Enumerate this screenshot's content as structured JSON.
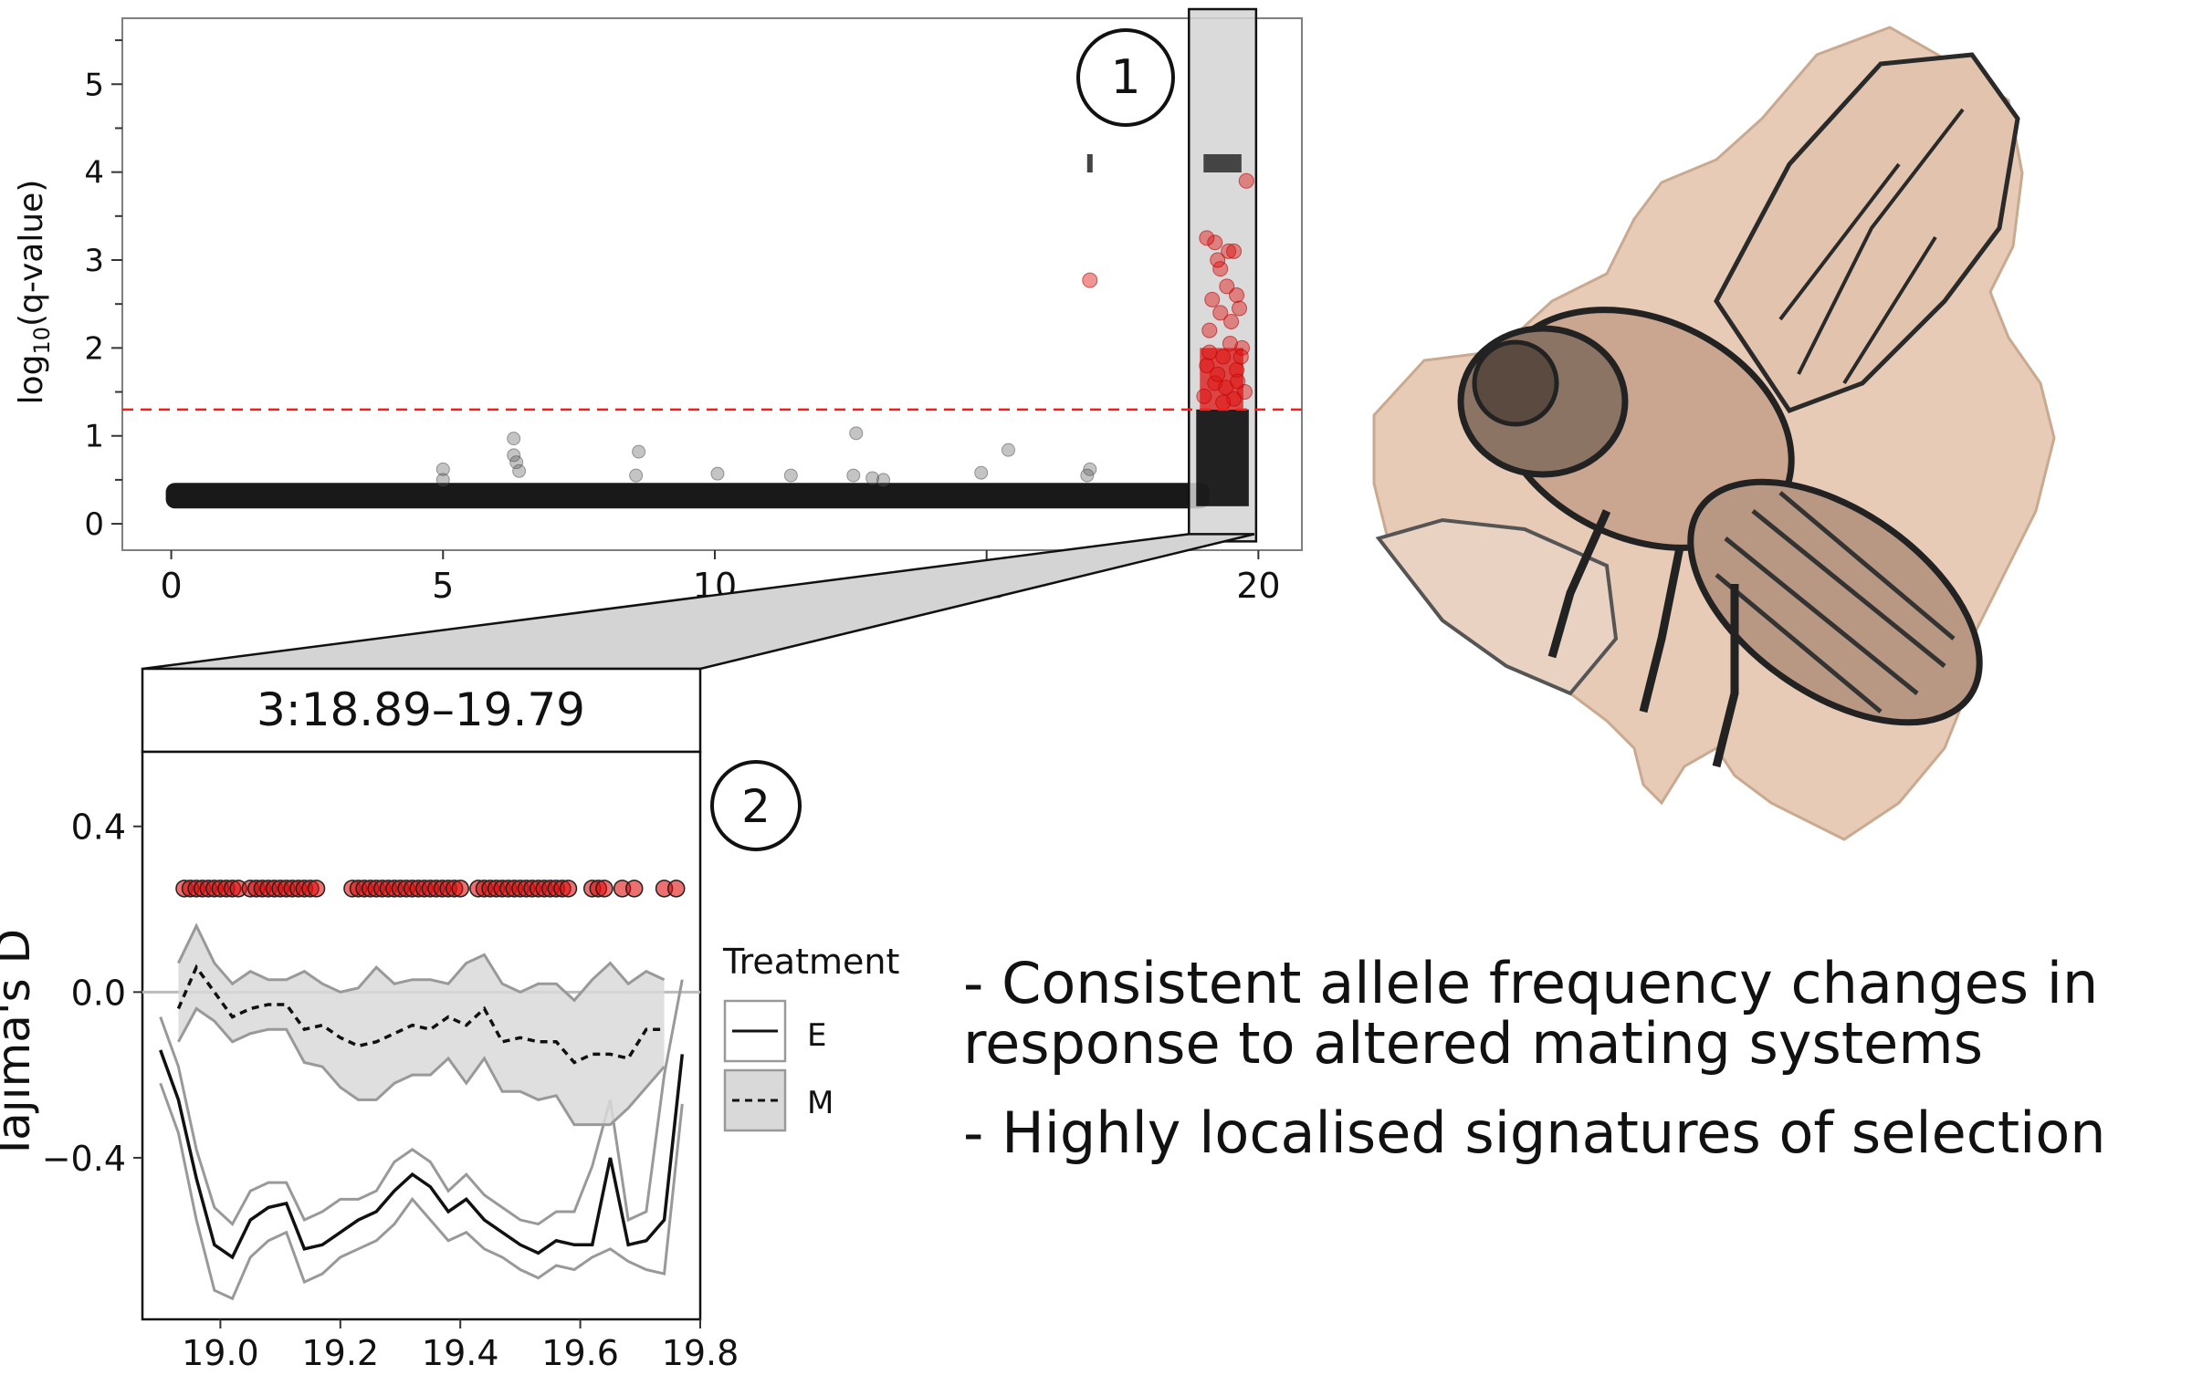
{
  "chart_data": [
    {
      "type": "scatter",
      "panel_label": "1",
      "ylabel_main": "log",
      "ylabel_sub": "10",
      "ylabel_rest": "(q-value)",
      "xlim": [
        -0.9,
        20.8
      ],
      "ylim": [
        -0.3,
        5.75
      ],
      "x_ticks": [
        0,
        5,
        10,
        15,
        20
      ],
      "y_ticks": [
        0,
        1,
        2,
        3,
        4,
        5
      ],
      "threshold_y": 1.3,
      "threshold_color": "#ff1a1a",
      "highlight_region": [
        18.89,
        19.79
      ],
      "band_y": 0.32,
      "band_x_range": [
        0,
        19.0
      ],
      "background_points": [
        [
          5.0,
          0.62
        ],
        [
          5.0,
          0.5
        ],
        [
          6.3,
          0.97
        ],
        [
          6.3,
          0.78
        ],
        [
          6.35,
          0.7
        ],
        [
          6.4,
          0.6
        ],
        [
          8.6,
          0.82
        ],
        [
          8.55,
          0.55
        ],
        [
          10.05,
          0.57
        ],
        [
          11.4,
          0.55
        ],
        [
          12.6,
          1.03
        ],
        [
          12.55,
          0.55
        ],
        [
          12.9,
          0.52
        ],
        [
          13.1,
          0.5
        ],
        [
          14.9,
          0.58
        ],
        [
          15.4,
          0.84
        ],
        [
          16.9,
          0.62
        ],
        [
          16.85,
          0.55
        ]
      ],
      "highlighted_points": [
        [
          16.9,
          2.77
        ],
        [
          19.2,
          3.2
        ],
        [
          19.3,
          2.9
        ],
        [
          19.45,
          3.1
        ],
        [
          19.6,
          2.6
        ],
        [
          19.1,
          2.2
        ],
        [
          19.5,
          2.3
        ],
        [
          19.7,
          2.0
        ],
        [
          19.05,
          1.8
        ],
        [
          19.35,
          1.9
        ],
        [
          19.6,
          1.75
        ],
        [
          19.2,
          1.6
        ],
        [
          19.4,
          1.55
        ],
        [
          19.75,
          1.5
        ],
        [
          19.0,
          1.45
        ],
        [
          19.55,
          1.42
        ],
        [
          19.15,
          2.55
        ],
        [
          19.65,
          2.45
        ],
        [
          19.25,
          3.0
        ],
        [
          19.42,
          2.7
        ],
        [
          19.05,
          3.25
        ],
        [
          19.55,
          3.1
        ],
        [
          19.3,
          2.4
        ],
        [
          19.78,
          3.9
        ],
        [
          19.68,
          1.9
        ],
        [
          19.1,
          1.95
        ],
        [
          19.48,
          2.05
        ],
        [
          19.62,
          1.62
        ],
        [
          19.25,
          1.7
        ],
        [
          19.35,
          1.38
        ]
      ],
      "marker_bars": [
        [
          16.9,
          4.1
        ],
        [
          19.3,
          4.1
        ]
      ]
    },
    {
      "type": "line",
      "panel_label": "2",
      "strip_title": "3:18.89–19.79",
      "ylabel": "Tajima's D",
      "xlim": [
        18.87,
        19.8
      ],
      "ylim": [
        -0.79,
        0.58
      ],
      "x_ticks": [
        "19.0",
        "19.2",
        "19.4",
        "19.6",
        "19.8"
      ],
      "y_ticks": [
        "0.4",
        "0.0",
        "−0.4"
      ],
      "y_tick_values": [
        0.4,
        0.0,
        -0.4
      ],
      "x_tick_values": [
        19.0,
        19.2,
        19.4,
        19.6,
        19.8
      ],
      "points_y": 0.25,
      "point_x": [
        18.94,
        18.95,
        18.96,
        18.97,
        18.98,
        18.99,
        19.0,
        19.01,
        19.02,
        19.03,
        19.05,
        19.06,
        19.07,
        19.08,
        19.09,
        19.1,
        19.11,
        19.12,
        19.13,
        19.14,
        19.15,
        19.16,
        19.22,
        19.23,
        19.24,
        19.25,
        19.26,
        19.27,
        19.28,
        19.29,
        19.3,
        19.31,
        19.32,
        19.33,
        19.34,
        19.35,
        19.36,
        19.37,
        19.38,
        19.39,
        19.4,
        19.43,
        19.44,
        19.45,
        19.46,
        19.47,
        19.48,
        19.49,
        19.5,
        19.51,
        19.52,
        19.53,
        19.54,
        19.55,
        19.56,
        19.57,
        19.58,
        19.62,
        19.63,
        19.64,
        19.67,
        19.69,
        19.74,
        19.76
      ],
      "x": [
        18.9,
        18.93,
        18.96,
        18.99,
        19.02,
        19.05,
        19.08,
        19.11,
        19.14,
        19.17,
        19.2,
        19.23,
        19.26,
        19.29,
        19.32,
        19.35,
        19.38,
        19.41,
        19.44,
        19.47,
        19.5,
        19.53,
        19.56,
        19.59,
        19.62,
        19.65,
        19.68,
        19.71,
        19.74,
        19.77
      ],
      "series": [
        {
          "name": "E",
          "style": "solid",
          "color": "#111111",
          "x": [
            18.9,
            18.93,
            18.96,
            18.99,
            19.02,
            19.05,
            19.08,
            19.11,
            19.14,
            19.17,
            19.2,
            19.23,
            19.26,
            19.29,
            19.32,
            19.35,
            19.38,
            19.41,
            19.44,
            19.47,
            19.5,
            19.53,
            19.56,
            19.59,
            19.62,
            19.65,
            19.68,
            19.71,
            19.74,
            19.77
          ],
          "values": [
            -0.14,
            -0.26,
            -0.45,
            -0.61,
            -0.64,
            -0.55,
            -0.52,
            -0.51,
            -0.62,
            -0.61,
            -0.58,
            -0.55,
            -0.53,
            -0.48,
            -0.44,
            -0.47,
            -0.53,
            -0.5,
            -0.55,
            -0.58,
            -0.61,
            -0.63,
            -0.6,
            -0.61,
            -0.61,
            -0.4,
            -0.61,
            -0.6,
            -0.55,
            -0.15
          ],
          "upper": [
            -0.06,
            -0.18,
            -0.38,
            -0.52,
            -0.56,
            -0.48,
            -0.46,
            -0.46,
            -0.55,
            -0.53,
            -0.5,
            -0.5,
            -0.48,
            -0.41,
            -0.38,
            -0.41,
            -0.48,
            -0.44,
            -0.49,
            -0.52,
            -0.55,
            -0.56,
            -0.53,
            -0.53,
            -0.42,
            -0.26,
            -0.55,
            -0.53,
            -0.2,
            0.03
          ],
          "lower": [
            -0.22,
            -0.34,
            -0.55,
            -0.72,
            -0.74,
            -0.64,
            -0.6,
            -0.58,
            -0.7,
            -0.68,
            -0.64,
            -0.62,
            -0.6,
            -0.56,
            -0.5,
            -0.55,
            -0.6,
            -0.58,
            -0.62,
            -0.64,
            -0.67,
            -0.69,
            -0.66,
            -0.67,
            -0.64,
            -0.62,
            -0.65,
            -0.67,
            -0.68,
            -0.27
          ]
        },
        {
          "name": "M",
          "style": "dashed",
          "color": "#111111",
          "x": [
            18.93,
            18.96,
            18.99,
            19.02,
            19.05,
            19.08,
            19.11,
            19.14,
            19.17,
            19.2,
            19.23,
            19.26,
            19.29,
            19.32,
            19.35,
            19.38,
            19.41,
            19.44,
            19.47,
            19.5,
            19.53,
            19.56,
            19.59,
            19.62,
            19.65,
            19.68,
            19.71,
            19.74
          ],
          "values": [
            -0.04,
            0.06,
            0.0,
            -0.06,
            -0.04,
            -0.03,
            -0.03,
            -0.09,
            -0.08,
            -0.11,
            -0.13,
            -0.12,
            -0.1,
            -0.08,
            -0.09,
            -0.06,
            -0.08,
            -0.04,
            -0.12,
            -0.11,
            -0.12,
            -0.12,
            -0.17,
            -0.15,
            -0.15,
            -0.16,
            -0.09,
            -0.09
          ],
          "upper": [
            0.07,
            0.16,
            0.07,
            0.02,
            0.05,
            0.03,
            0.03,
            0.05,
            0.02,
            0.0,
            0.01,
            0.06,
            0.02,
            0.03,
            0.03,
            0.02,
            0.07,
            0.09,
            0.02,
            0.0,
            0.02,
            0.02,
            -0.02,
            0.03,
            0.07,
            0.02,
            0.05,
            0.03
          ],
          "lower": [
            -0.12,
            -0.04,
            -0.07,
            -0.12,
            -0.1,
            -0.09,
            -0.09,
            -0.17,
            -0.18,
            -0.23,
            -0.26,
            -0.26,
            -0.22,
            -0.2,
            -0.2,
            -0.16,
            -0.22,
            -0.16,
            -0.24,
            -0.24,
            -0.26,
            -0.25,
            -0.32,
            -0.32,
            -0.32,
            -0.28,
            -0.23,
            -0.18
          ]
        }
      ],
      "legend": {
        "title": "Treatment",
        "items": [
          "E",
          "M"
        ],
        "position": "right"
      }
    }
  ],
  "bullets": [
    "- Consistent allele frequency changes in response to altered mating systems",
    "- Highly localised signatures of selection"
  ],
  "illustration": {
    "name": "fly-tattoo-icon"
  },
  "colors": {
    "highlight": "#dd1111",
    "band": "#d9d9d9",
    "ribbon": "#999999"
  }
}
